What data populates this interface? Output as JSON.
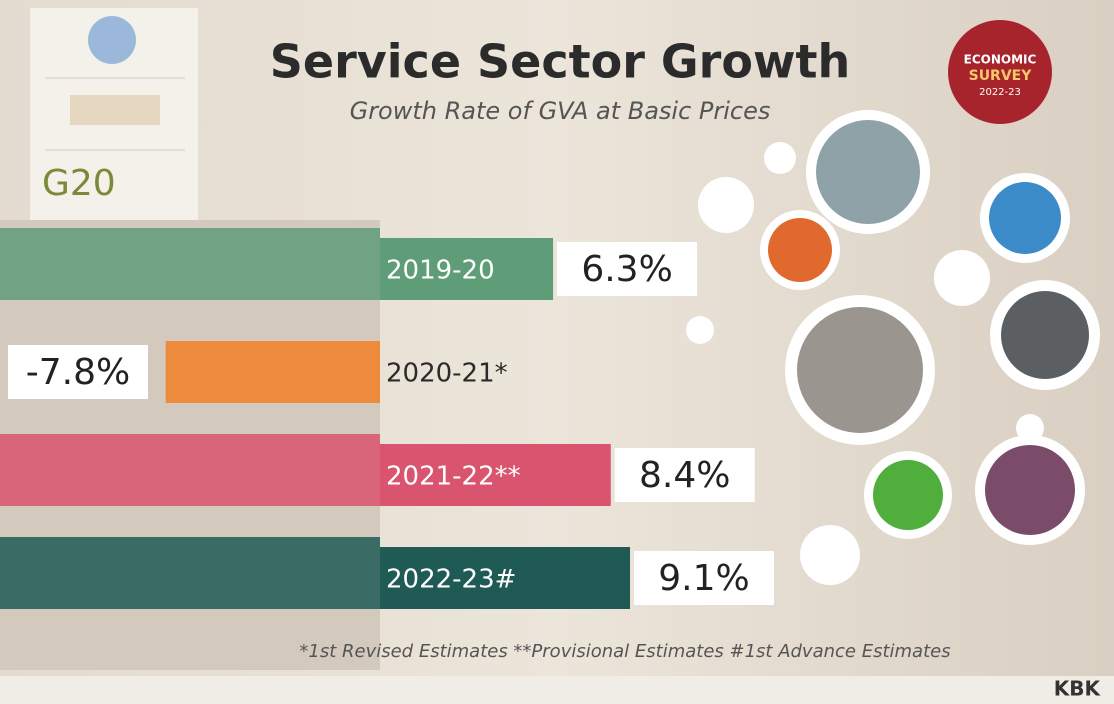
{
  "chart_data": {
    "type": "bar",
    "title": "Service Sector Growth",
    "subtitle": "Growth Rate of GVA at Basic Prices",
    "categories": [
      "2019-20",
      "2020-21*",
      "2021-22**",
      "2022-23#"
    ],
    "values": [
      6.3,
      -7.8,
      8.4,
      9.1
    ],
    "value_labels": [
      "6.3%",
      "-7.8%",
      "8.4%",
      "9.1%"
    ],
    "colors": [
      "#5f9c78",
      "#ee8a3c",
      "#d9546f",
      "#1f5a55"
    ],
    "footnote": "*1st Revised Estimates **Provisional Estimates #1st Advance Estimates",
    "badge": [
      "ECONOMIC",
      "SURVEY",
      "2022-23"
    ],
    "logo": "G20",
    "credit": "KBK"
  }
}
